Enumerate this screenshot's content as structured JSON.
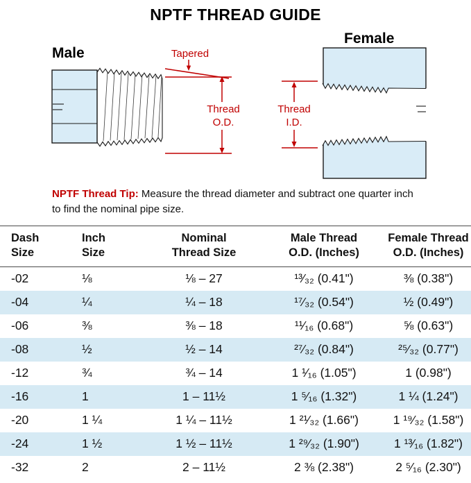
{
  "title": "NPTF THREAD GUIDE",
  "diagram": {
    "male_label": "Male",
    "female_label": "Female",
    "tapered_label": "Tapered",
    "thread_od_label_line1": "Thread",
    "thread_od_label_line2": "O.D.",
    "thread_id_label_line1": "Thread",
    "thread_id_label_line2": "I.D.",
    "colors": {
      "annotation_red": "#c00000",
      "fitting_fill": "#d9ecf7"
    }
  },
  "tip": {
    "label": "NPTF Thread Tip:",
    "text": "Measure the thread diameter and subtract one quarter inch to find the nominal pipe size."
  },
  "table": {
    "headers": [
      "Dash\nSize",
      "Inch\nSize",
      "Nominal\nThread Size",
      "Male Thread\nO.D. (Inches)",
      "Female Thread\nO.D. (Inches)"
    ],
    "rows": [
      [
        "-02",
        "⅛",
        "⅛ – 27",
        "¹³⁄₃₂ (0.41\")",
        "⅜ (0.38\")"
      ],
      [
        "-04",
        "¼",
        "¼ – 18",
        "¹⁷⁄₃₂ (0.54\")",
        "½ (0.49\")"
      ],
      [
        "-06",
        "⅜",
        "⅜ – 18",
        "¹¹⁄₁₆ (0.68\")",
        "⅝ (0.63\")"
      ],
      [
        "-08",
        "½",
        "½ – 14",
        "²⁷⁄₃₂ (0.84\")",
        "²⁵⁄₃₂ (0.77\")"
      ],
      [
        "-12",
        "¾",
        "¾ – 14",
        "1 ¹⁄₁₆ (1.05\")",
        "1 (0.98\")"
      ],
      [
        "-16",
        "1",
        "1 – 11½",
        "1 ⁵⁄₁₆ (1.32\")",
        "1 ¼ (1.24\")"
      ],
      [
        "-20",
        "1 ¼",
        "1 ¼ – 11½",
        "1 ²¹⁄₃₂ (1.66\")",
        "1 ¹⁹⁄₃₂ (1.58\")"
      ],
      [
        "-24",
        "1 ½",
        "1 ½ – 11½",
        "1 ²⁹⁄₃₂ (1.90\")",
        "1 ¹³⁄₁₆ (1.82\")"
      ],
      [
        "-32",
        "2",
        "2 – 11½",
        "2 ⅜ (2.38\")",
        "2 ⁵⁄₁₆ (2.30\")"
      ]
    ],
    "row_alt_color": "#d6eaf4"
  }
}
